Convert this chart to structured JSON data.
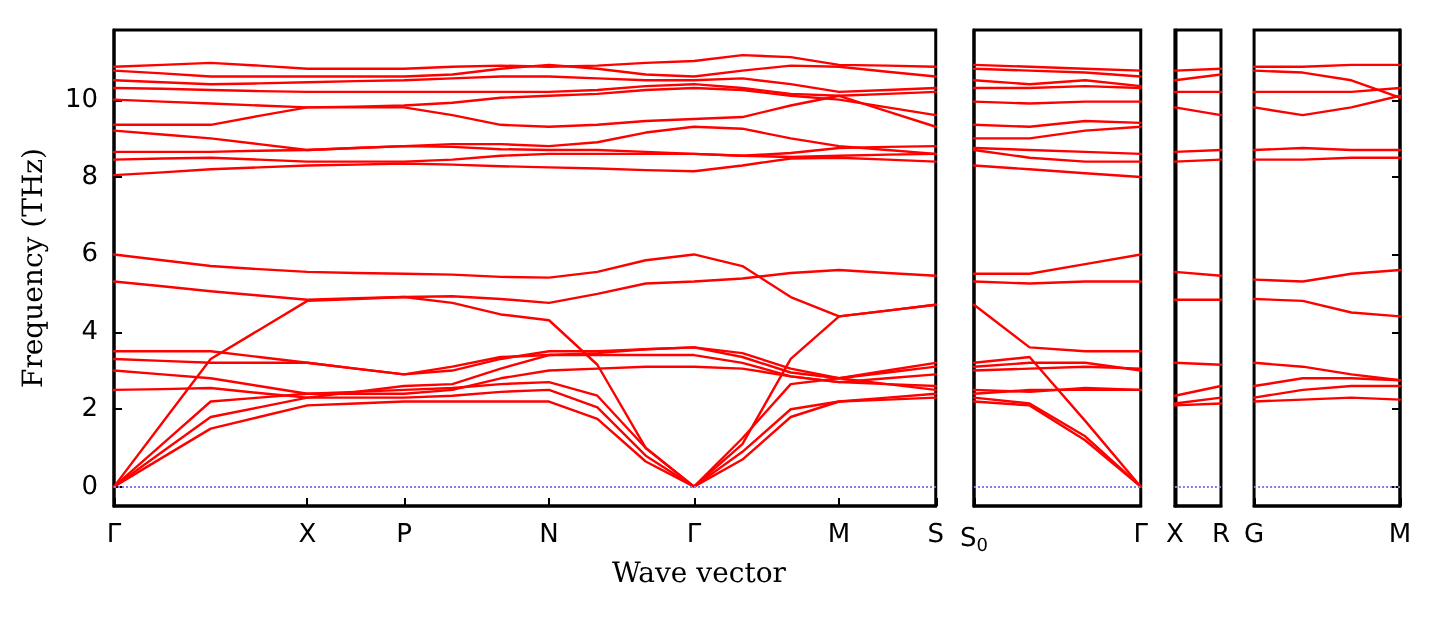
{
  "chart_data": [
    {
      "type": "line",
      "xlabel": "Wave vector",
      "ylabel": "Frequency (THz)",
      "marker": "none",
      "categories": [
        "Γ",
        null,
        null,
        null,
        "X",
        null,
        "P",
        null,
        null,
        "N",
        null,
        null,
        "Γ",
        null,
        null,
        "M",
        null,
        "S"
      ],
      "ylim": [
        -0.5,
        11.8
      ],
      "yticks": [
        0,
        2,
        4,
        6,
        8,
        10
      ],
      "ref_lines": [
        {
          "axis": "y",
          "value": 0,
          "color": "#8080e0",
          "line_style": "dotted"
        }
      ],
      "series": [
        {
          "color": "#ff0000",
          "values": [
            0,
            0.75,
            1.5,
            1.8,
            2.1,
            2.15,
            2.2,
            2.2,
            2.2,
            2.2,
            1.75,
            0.65,
            0,
            0.7,
            1.8,
            2.2,
            2.25,
            2.3
          ]
        },
        {
          "color": "#ff0000",
          "values": [
            0,
            0.9,
            1.8,
            2.05,
            2.3,
            2.3,
            2.3,
            2.35,
            2.45,
            2.5,
            2.05,
            0.8,
            0,
            0.9,
            2.0,
            2.2,
            2.3,
            2.4
          ]
        },
        {
          "color": "#ff0000",
          "values": [
            0,
            1.1,
            2.2,
            2.3,
            2.4,
            2.45,
            2.5,
            2.55,
            2.65,
            2.7,
            2.35,
            1.0,
            0,
            1.25,
            2.65,
            2.8,
            3.0,
            3.2
          ]
        },
        {
          "color": "#ff0000",
          "values": [
            0,
            1.65,
            3.3,
            4.05,
            4.8,
            4.85,
            4.9,
            4.75,
            4.45,
            4.3,
            3.15,
            1.0,
            0,
            1.1,
            3.3,
            4.4,
            4.55,
            4.7
          ]
        },
        {
          "color": "#ff0000",
          "values": [
            2.5,
            2.52,
            2.55,
            2.42,
            2.3,
            2.45,
            2.6,
            2.65,
            3.05,
            3.4,
            3.4,
            3.4,
            3.4,
            3.2,
            2.85,
            2.7,
            2.8,
            2.9
          ]
        },
        {
          "color": "#ff0000",
          "values": [
            3.0,
            2.9,
            2.8,
            2.6,
            2.4,
            2.4,
            2.4,
            2.5,
            2.8,
            3.0,
            3.05,
            3.1,
            3.1,
            3.05,
            2.85,
            2.7,
            2.65,
            2.6
          ]
        },
        {
          "color": "#ff0000",
          "values": [
            3.3,
            3.25,
            3.2,
            3.2,
            3.2,
            3.05,
            2.9,
            3.1,
            3.35,
            3.4,
            3.45,
            3.55,
            3.6,
            3.45,
            3.05,
            2.8,
            2.95,
            3.1
          ]
        },
        {
          "color": "#ff0000",
          "values": [
            3.5,
            3.5,
            3.5,
            3.35,
            3.2,
            3.05,
            2.9,
            3.0,
            3.3,
            3.5,
            3.5,
            3.55,
            3.6,
            3.35,
            2.95,
            2.8,
            2.65,
            2.5
          ]
        },
        {
          "color": "#ff0000",
          "values": [
            5.3,
            5.18,
            5.05,
            4.94,
            4.83,
            4.87,
            4.9,
            4.92,
            4.85,
            4.75,
            4.98,
            5.25,
            5.3,
            5.38,
            5.52,
            5.6,
            5.52,
            5.45
          ]
        },
        {
          "color": "#ff0000",
          "values": [
            6.0,
            5.85,
            5.7,
            5.62,
            5.55,
            5.52,
            5.5,
            5.48,
            5.42,
            5.4,
            5.55,
            5.85,
            6.0,
            5.7,
            4.9,
            4.4,
            4.55,
            4.7
          ]
        },
        {
          "color": "#ff0000",
          "values": [
            8.05,
            8.12,
            8.2,
            8.25,
            8.3,
            8.32,
            8.35,
            8.32,
            8.28,
            8.25,
            8.22,
            8.18,
            8.15,
            8.3,
            8.48,
            8.5,
            8.45,
            8.4
          ]
        },
        {
          "color": "#ff0000",
          "values": [
            8.45,
            8.48,
            8.5,
            8.45,
            8.4,
            8.4,
            8.4,
            8.45,
            8.55,
            8.6,
            8.6,
            8.6,
            8.6,
            8.55,
            8.52,
            8.55,
            8.58,
            8.6
          ]
        },
        {
          "color": "#ff0000",
          "values": [
            8.65,
            8.65,
            8.65,
            8.68,
            8.7,
            8.75,
            8.8,
            8.78,
            8.72,
            8.7,
            8.7,
            8.65,
            8.6,
            8.55,
            8.62,
            8.75,
            8.78,
            8.8
          ]
        },
        {
          "color": "#ff0000",
          "values": [
            9.2,
            9.1,
            9.0,
            8.85,
            8.7,
            8.75,
            8.8,
            8.85,
            8.85,
            8.8,
            8.9,
            9.15,
            9.3,
            9.25,
            9.0,
            8.8,
            8.7,
            8.6
          ]
        },
        {
          "color": "#ff0000",
          "values": [
            9.35,
            9.35,
            9.35,
            9.58,
            9.8,
            9.8,
            9.8,
            9.6,
            9.35,
            9.3,
            9.35,
            9.45,
            9.5,
            9.55,
            9.85,
            10.1,
            9.7,
            9.3
          ]
        },
        {
          "color": "#ff0000",
          "values": [
            10.0,
            9.95,
            9.9,
            9.85,
            9.8,
            9.82,
            9.85,
            9.92,
            10.05,
            10.1,
            10.15,
            10.25,
            10.3,
            10.25,
            10.1,
            10.0,
            9.8,
            9.6
          ]
        },
        {
          "color": "#ff0000",
          "values": [
            10.3,
            10.28,
            10.25,
            10.22,
            10.2,
            10.2,
            10.2,
            10.2,
            10.2,
            10.2,
            10.25,
            10.35,
            10.4,
            10.3,
            10.15,
            10.1,
            10.15,
            10.2
          ]
        },
        {
          "color": "#ff0000",
          "values": [
            10.5,
            10.45,
            10.4,
            10.42,
            10.45,
            10.48,
            10.5,
            10.55,
            10.6,
            10.6,
            10.55,
            10.5,
            10.5,
            10.55,
            10.4,
            10.2,
            10.25,
            10.3
          ]
        },
        {
          "color": "#ff0000",
          "values": [
            10.75,
            10.68,
            10.6,
            10.6,
            10.6,
            10.6,
            10.6,
            10.65,
            10.8,
            10.9,
            10.8,
            10.65,
            10.6,
            10.75,
            10.88,
            10.85,
            10.72,
            10.6
          ]
        },
        {
          "color": "#ff0000",
          "values": [
            10.85,
            10.9,
            10.95,
            10.88,
            10.8,
            10.8,
            10.8,
            10.85,
            10.88,
            10.85,
            10.88,
            10.95,
            11.0,
            11.15,
            11.1,
            10.9,
            10.88,
            10.85
          ]
        }
      ]
    },
    {
      "type": "line",
      "marker": "none",
      "tick_labels": "x",
      "categories": [
        "S$_{0}$",
        null,
        null,
        "Γ"
      ],
      "ylim": [
        -0.5,
        11.8
      ],
      "ref_lines": [
        {
          "axis": "y",
          "value": 0,
          "color": "#8080e0",
          "line_style": "dotted"
        }
      ],
      "series": [
        {
          "color": "#ff0000",
          "values": [
            2.2,
            2.1,
            1.2,
            0
          ]
        },
        {
          "color": "#ff0000",
          "values": [
            2.3,
            2.15,
            1.3,
            0
          ]
        },
        {
          "color": "#ff0000",
          "values": [
            2.4,
            2.5,
            2.5,
            2.5
          ]
        },
        {
          "color": "#ff0000",
          "values": [
            4.7,
            3.6,
            3.5,
            3.5
          ]
        },
        {
          "color": "#ff0000",
          "values": [
            3.2,
            3.35,
            1.7,
            0
          ]
        },
        {
          "color": "#ff0000",
          "values": [
            3.1,
            3.2,
            3.2,
            3.0
          ]
        },
        {
          "color": "#ff0000",
          "values": [
            2.5,
            2.45,
            2.55,
            2.5
          ]
        },
        {
          "color": "#ff0000",
          "values": [
            3.0,
            3.05,
            3.1,
            3.05
          ]
        },
        {
          "color": "#ff0000",
          "values": [
            5.5,
            5.5,
            5.75,
            6.0
          ]
        },
        {
          "color": "#ff0000",
          "values": [
            5.3,
            5.25,
            5.3,
            5.3
          ]
        },
        {
          "color": "#ff0000",
          "values": [
            8.3,
            8.2,
            8.1,
            8.0
          ]
        },
        {
          "color": "#ff0000",
          "values": [
            8.7,
            8.5,
            8.4,
            8.4
          ]
        },
        {
          "color": "#ff0000",
          "values": [
            8.75,
            8.7,
            8.65,
            8.6
          ]
        },
        {
          "color": "#ff0000",
          "values": [
            9.0,
            9.0,
            9.2,
            9.3
          ]
        },
        {
          "color": "#ff0000",
          "values": [
            9.35,
            9.3,
            9.45,
            9.4
          ]
        },
        {
          "color": "#ff0000",
          "values": [
            9.95,
            9.9,
            9.95,
            9.95
          ]
        },
        {
          "color": "#ff0000",
          "values": [
            10.3,
            10.3,
            10.35,
            10.3
          ]
        },
        {
          "color": "#ff0000",
          "values": [
            10.5,
            10.4,
            10.5,
            10.35
          ]
        },
        {
          "color": "#ff0000",
          "values": [
            10.8,
            10.75,
            10.7,
            10.6
          ]
        },
        {
          "color": "#ff0000",
          "values": [
            10.9,
            10.85,
            10.8,
            10.75
          ]
        }
      ]
    },
    {
      "type": "line",
      "marker": "none",
      "tick_labels": "x",
      "categories": [
        "X",
        "R"
      ],
      "ylim": [
        -0.5,
        11.8
      ],
      "ref_lines": [
        {
          "axis": "y",
          "value": 0,
          "color": "#8080e0",
          "line_style": "dotted"
        }
      ],
      "series": [
        {
          "color": "#ff0000",
          "values": [
            2.1,
            2.15
          ]
        },
        {
          "color": "#ff0000",
          "values": [
            2.15,
            2.3
          ]
        },
        {
          "color": "#ff0000",
          "values": [
            2.35,
            2.6
          ]
        },
        {
          "color": "#ff0000",
          "values": [
            3.2,
            3.15
          ]
        },
        {
          "color": "#ff0000",
          "values": [
            4.83,
            4.83
          ]
        },
        {
          "color": "#ff0000",
          "values": [
            5.55,
            5.45
          ]
        },
        {
          "color": "#ff0000",
          "values": [
            8.4,
            8.45
          ]
        },
        {
          "color": "#ff0000",
          "values": [
            8.65,
            8.7
          ]
        },
        {
          "color": "#ff0000",
          "values": [
            9.8,
            9.6
          ]
        },
        {
          "color": "#ff0000",
          "values": [
            10.2,
            10.2
          ]
        },
        {
          "color": "#ff0000",
          "values": [
            10.5,
            10.65
          ]
        },
        {
          "color": "#ff0000",
          "values": [
            10.75,
            10.8
          ]
        }
      ]
    },
    {
      "type": "line",
      "marker": "none",
      "tick_labels": "x",
      "categories": [
        "G",
        null,
        null,
        "M"
      ],
      "ylim": [
        -0.5,
        11.8
      ],
      "yticks": [
        0,
        2,
        4,
        6,
        8,
        10
      ],
      "ref_lines": [
        {
          "axis": "y",
          "value": 0,
          "color": "#8080e0",
          "line_style": "dotted"
        }
      ],
      "series": [
        {
          "color": "#ff0000",
          "values": [
            2.2,
            2.25,
            2.3,
            2.25
          ]
        },
        {
          "color": "#ff0000",
          "values": [
            2.3,
            2.5,
            2.6,
            2.6
          ]
        },
        {
          "color": "#ff0000",
          "values": [
            2.6,
            2.8,
            2.8,
            2.75
          ]
        },
        {
          "color": "#ff0000",
          "values": [
            3.2,
            3.1,
            2.9,
            2.75
          ]
        },
        {
          "color": "#ff0000",
          "values": [
            4.85,
            4.8,
            4.5,
            4.4
          ]
        },
        {
          "color": "#ff0000",
          "values": [
            5.35,
            5.3,
            5.5,
            5.6
          ]
        },
        {
          "color": "#ff0000",
          "values": [
            8.45,
            8.45,
            8.5,
            8.5
          ]
        },
        {
          "color": "#ff0000",
          "values": [
            8.7,
            8.75,
            8.7,
            8.7
          ]
        },
        {
          "color": "#ff0000",
          "values": [
            9.8,
            9.6,
            9.8,
            10.1
          ]
        },
        {
          "color": "#ff0000",
          "values": [
            10.2,
            10.2,
            10.2,
            10.3
          ]
        },
        {
          "color": "#ff0000",
          "values": [
            10.75,
            10.7,
            10.5,
            10.05
          ]
        },
        {
          "color": "#ff0000",
          "values": [
            10.85,
            10.85,
            10.9,
            10.9
          ]
        }
      ]
    }
  ]
}
